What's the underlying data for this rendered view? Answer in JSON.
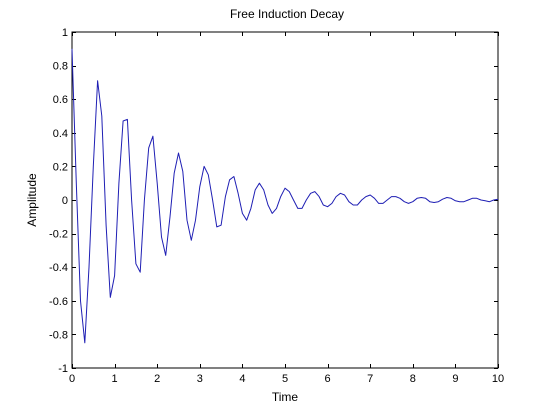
{
  "chart_data": {
    "type": "line",
    "title": "Free Induction Decay",
    "xlabel": "Time",
    "ylabel": "Amplitude",
    "xlim": [
      0,
      10
    ],
    "ylim": [
      -1,
      1
    ],
    "xticks": [
      0,
      1,
      2,
      3,
      4,
      5,
      6,
      7,
      8,
      9,
      10
    ],
    "yticks": [
      -1,
      -0.8,
      -0.6,
      -0.4,
      -0.2,
      0,
      0.2,
      0.4,
      0.6,
      0.8,
      1
    ],
    "ytick_labels": [
      "-1",
      "-0.8",
      "-0.6",
      "-0.4",
      "-0.2",
      "0",
      "0.2",
      "0.4",
      "0.6",
      "0.8",
      "1"
    ],
    "grid": false,
    "line_color": "#1f1fb4",
    "series": [
      {
        "x": [
          0.0,
          0.1,
          0.2,
          0.3,
          0.4,
          0.5,
          0.6,
          0.7,
          0.8,
          0.9,
          1.0,
          1.1,
          1.2,
          1.3,
          1.4,
          1.5,
          1.6,
          1.7,
          1.8,
          1.9,
          2.0,
          2.1,
          2.2,
          2.3,
          2.4,
          2.5,
          2.6,
          2.7,
          2.8,
          2.9,
          3.0,
          3.1,
          3.2,
          3.3,
          3.4,
          3.5,
          3.6,
          3.7,
          3.8,
          3.9,
          4.0,
          4.1,
          4.2,
          4.3,
          4.4,
          4.5,
          4.6,
          4.7,
          4.8,
          4.9,
          5.0,
          5.1,
          5.2,
          5.3,
          5.4,
          5.5,
          5.6,
          5.7,
          5.8,
          5.9,
          6.0,
          6.1,
          6.2,
          6.3,
          6.4,
          6.5,
          6.6,
          6.7,
          6.8,
          6.9,
          7.0,
          7.1,
          7.2,
          7.3,
          7.4,
          7.5,
          7.6,
          7.7,
          7.8,
          7.9,
          8.0,
          8.1,
          8.2,
          8.3,
          8.4,
          8.5,
          8.6,
          8.7,
          8.8,
          8.9,
          9.0,
          9.1,
          9.2,
          9.3,
          9.4,
          9.5,
          9.6,
          9.7,
          9.8,
          9.9,
          10.0
        ],
        "y": [
          0.9,
          0.1,
          -0.6,
          -0.85,
          -0.4,
          0.2,
          0.71,
          0.5,
          -0.15,
          -0.58,
          -0.45,
          0.1,
          0.47,
          0.48,
          0.0,
          -0.38,
          -0.43,
          0.0,
          0.31,
          0.38,
          0.1,
          -0.22,
          -0.33,
          -0.1,
          0.16,
          0.28,
          0.17,
          -0.12,
          -0.24,
          -0.12,
          0.08,
          0.2,
          0.15,
          0.0,
          -0.16,
          -0.15,
          0.02,
          0.12,
          0.14,
          0.04,
          -0.08,
          -0.12,
          -0.05,
          0.06,
          0.1,
          0.06,
          -0.03,
          -0.08,
          -0.05,
          0.02,
          0.07,
          0.05,
          0.0,
          -0.05,
          -0.05,
          0.0,
          0.04,
          0.05,
          0.02,
          -0.03,
          -0.04,
          -0.02,
          0.02,
          0.04,
          0.03,
          -0.01,
          -0.03,
          -0.03,
          0.0,
          0.02,
          0.03,
          0.01,
          -0.02,
          -0.02,
          0.0,
          0.02,
          0.02,
          0.01,
          -0.01,
          -0.02,
          -0.01,
          0.01,
          0.015,
          0.01,
          -0.01,
          -0.015,
          -0.01,
          0.005,
          0.015,
          0.01,
          -0.005,
          -0.01,
          -0.01,
          0.0,
          0.01,
          0.01,
          0.0,
          -0.005,
          -0.01,
          0.0,
          0.005
        ]
      }
    ]
  }
}
